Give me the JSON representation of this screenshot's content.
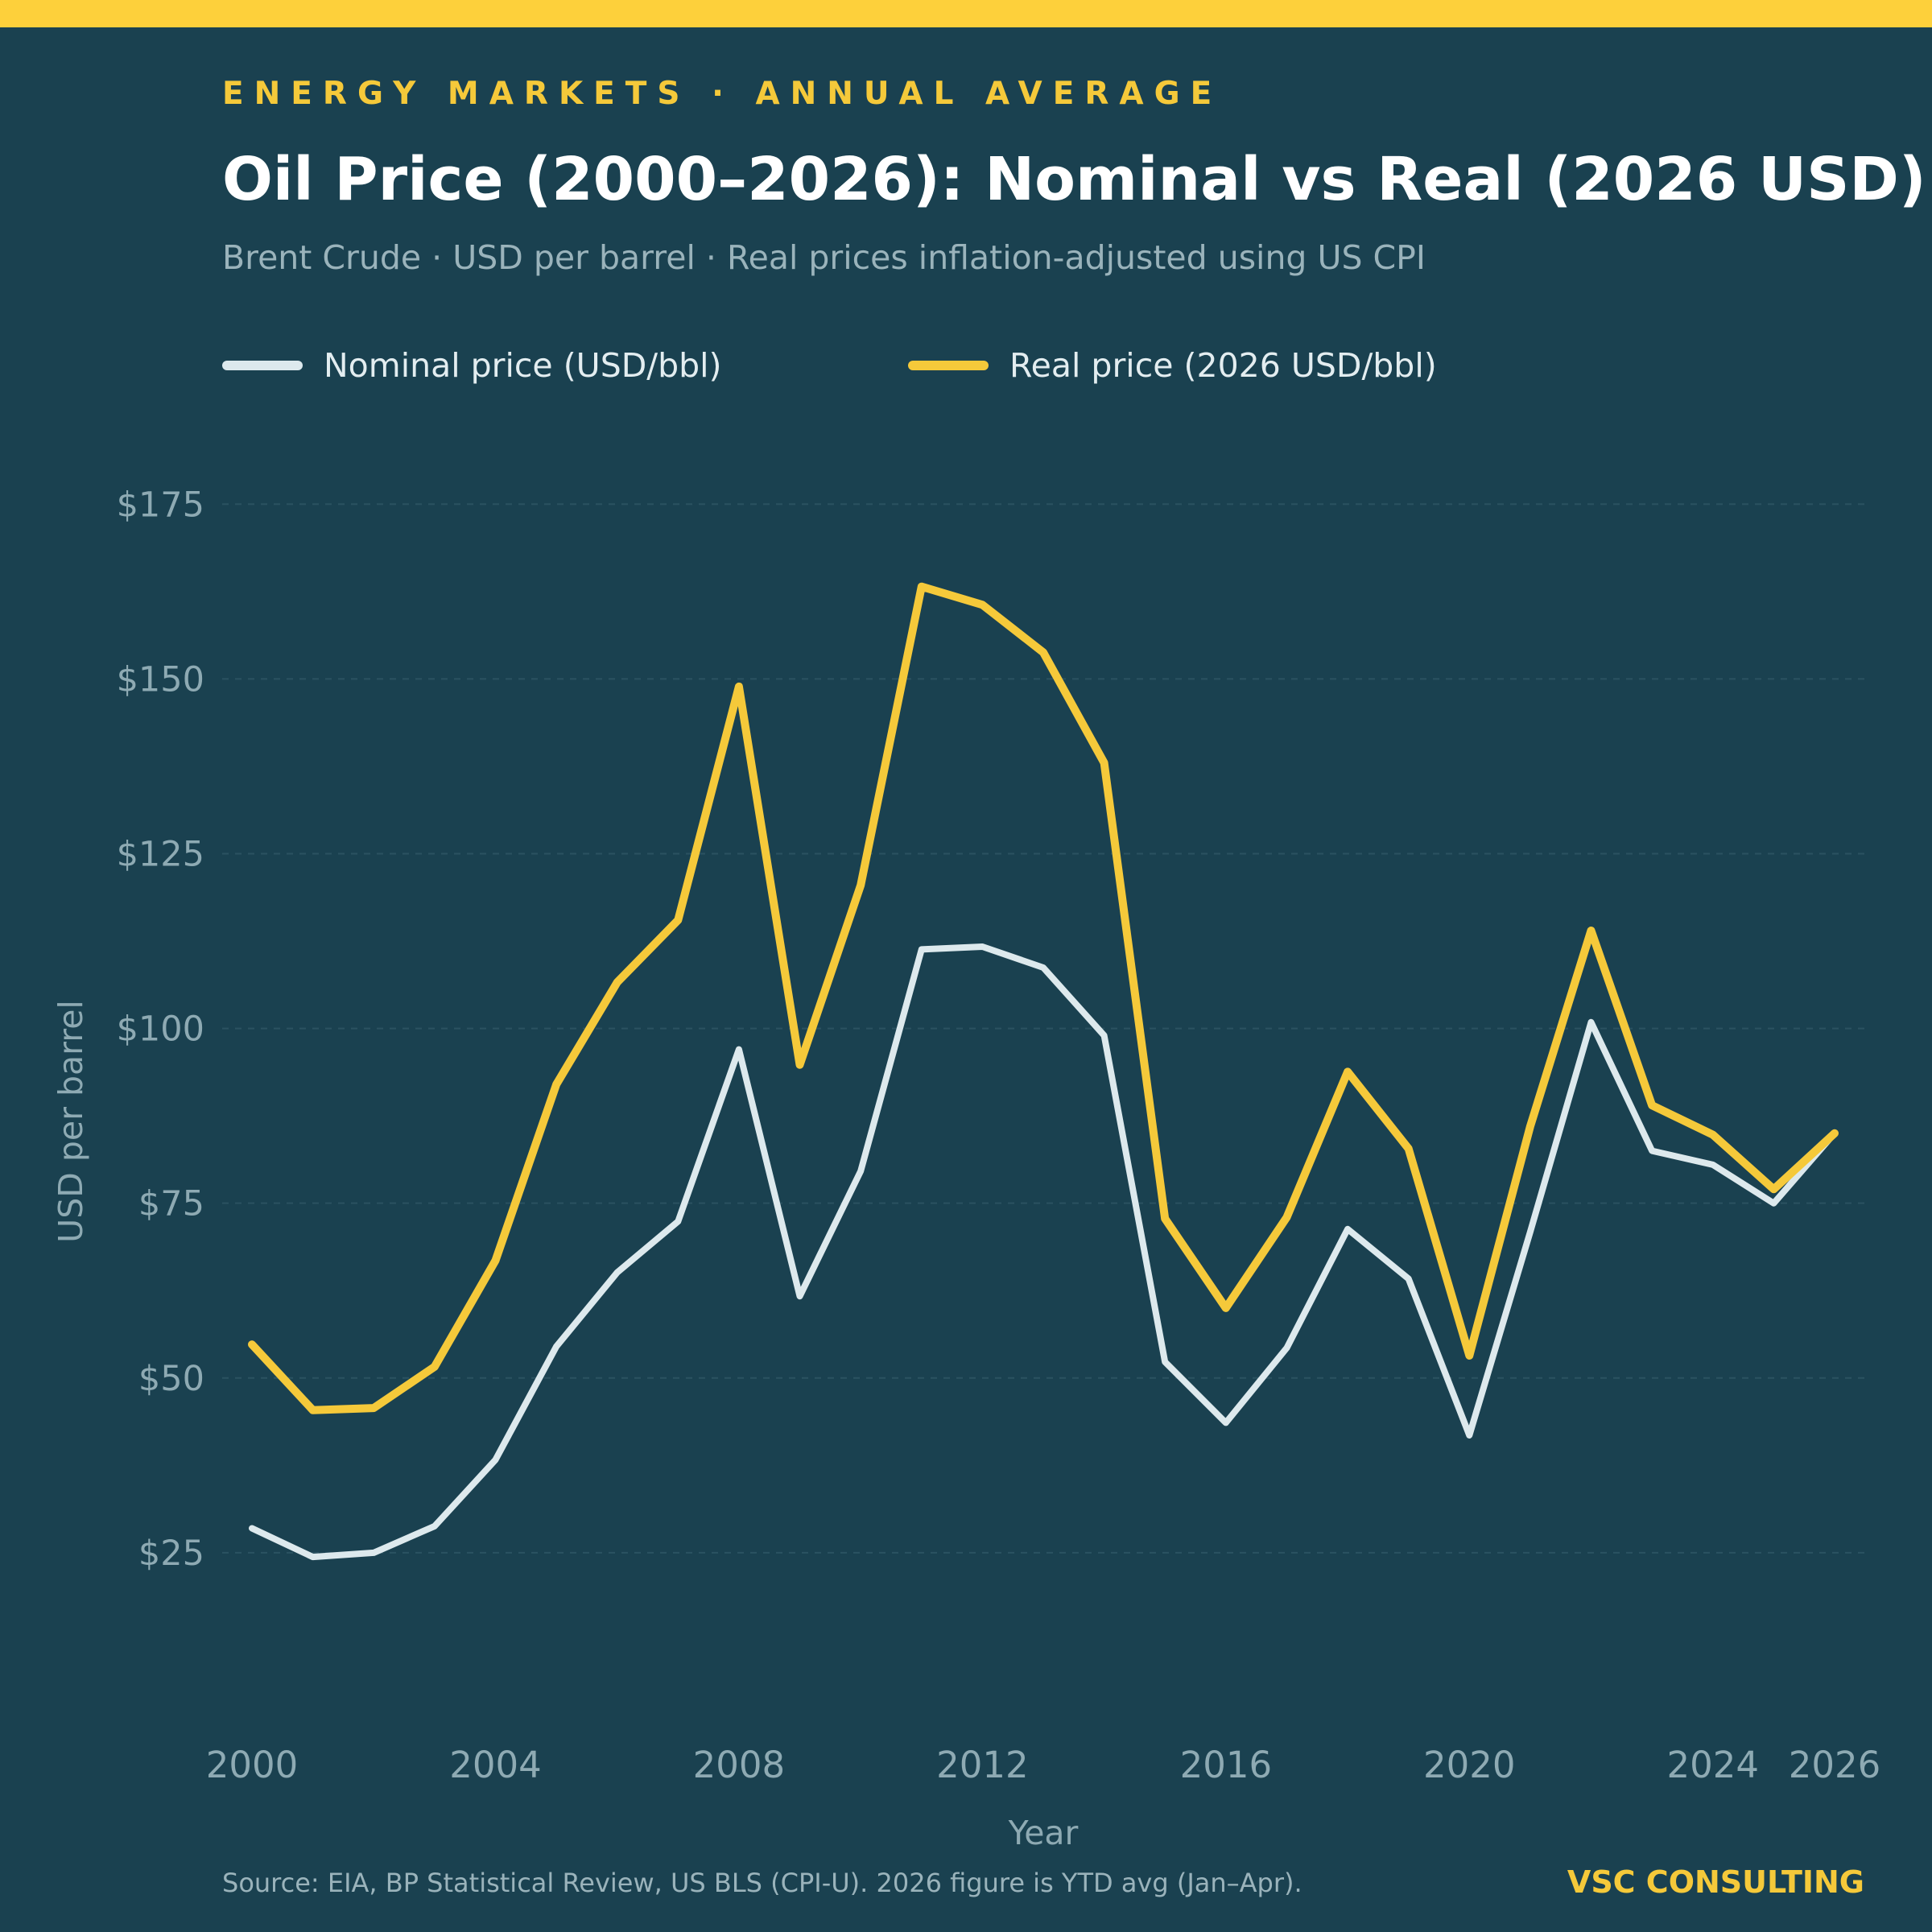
{
  "header": {
    "kicker": "ENERGY MARKETS  ·  ANNUAL AVERAGE",
    "title": "Oil Price (2000–2026): Nominal vs Real (2026 USD)",
    "subtitle": "Brent Crude  ·  USD per barrel  ·  Real prices inflation-adjusted using US CPI"
  },
  "footer": {
    "source": "Source: EIA, BP Statistical Review, US BLS (CPI-U).  2026 figure is YTD avg (Jan–Apr).",
    "brand": "VSC CONSULTING"
  },
  "colors": {
    "background": "#1a4150",
    "accent": "#fdd03b",
    "nominal": "#dde9ed",
    "real": "#f5c93a"
  },
  "chart_data": {
    "type": "line",
    "xlabel": "Year",
    "ylabel": "USD per barrel",
    "x": [
      2000,
      2001,
      2002,
      2003,
      2004,
      2005,
      2006,
      2007,
      2008,
      2009,
      2010,
      2011,
      2012,
      2013,
      2014,
      2015,
      2016,
      2017,
      2018,
      2019,
      2020,
      2021,
      2022,
      2023,
      2024,
      2025,
      2026
    ],
    "x_ticks": [
      "2000",
      "2004",
      "2008",
      "2012",
      "2016",
      "2020",
      "2024",
      "2026"
    ],
    "x_range": [
      2000,
      2026
    ],
    "y_ticks": [
      "$25",
      "$50",
      "$75",
      "$100",
      "$125",
      "$150",
      "$175"
    ],
    "y_tick_values": [
      25,
      50,
      75,
      100,
      125,
      150,
      175
    ],
    "ylim": [
      0,
      190
    ],
    "grid": "horizontal dashed",
    "legend_position": "top-left",
    "series": [
      {
        "name": "Nominal price (USD/bbl)",
        "values": [
          28.5,
          24.4,
          25.0,
          28.8,
          38.3,
          54.5,
          65.1,
          72.4,
          97.0,
          61.7,
          79.6,
          111.3,
          111.7,
          108.7,
          99.0,
          52.3,
          43.6,
          54.3,
          71.3,
          64.2,
          41.8,
          70.9,
          100.9,
          82.5,
          80.5,
          75.0,
          85.0
        ]
      },
      {
        "name": "Real price (2026 USD/bbl)",
        "values": [
          54.8,
          45.4,
          45.7,
          51.6,
          66.8,
          92.0,
          106.6,
          115.5,
          148.9,
          94.8,
          120.5,
          163.2,
          160.6,
          153.8,
          138.0,
          72.8,
          60.0,
          73.0,
          93.8,
          82.8,
          53.2,
          86.0,
          114.0,
          89.0,
          84.8,
          77.0,
          85.0
        ]
      }
    ]
  }
}
